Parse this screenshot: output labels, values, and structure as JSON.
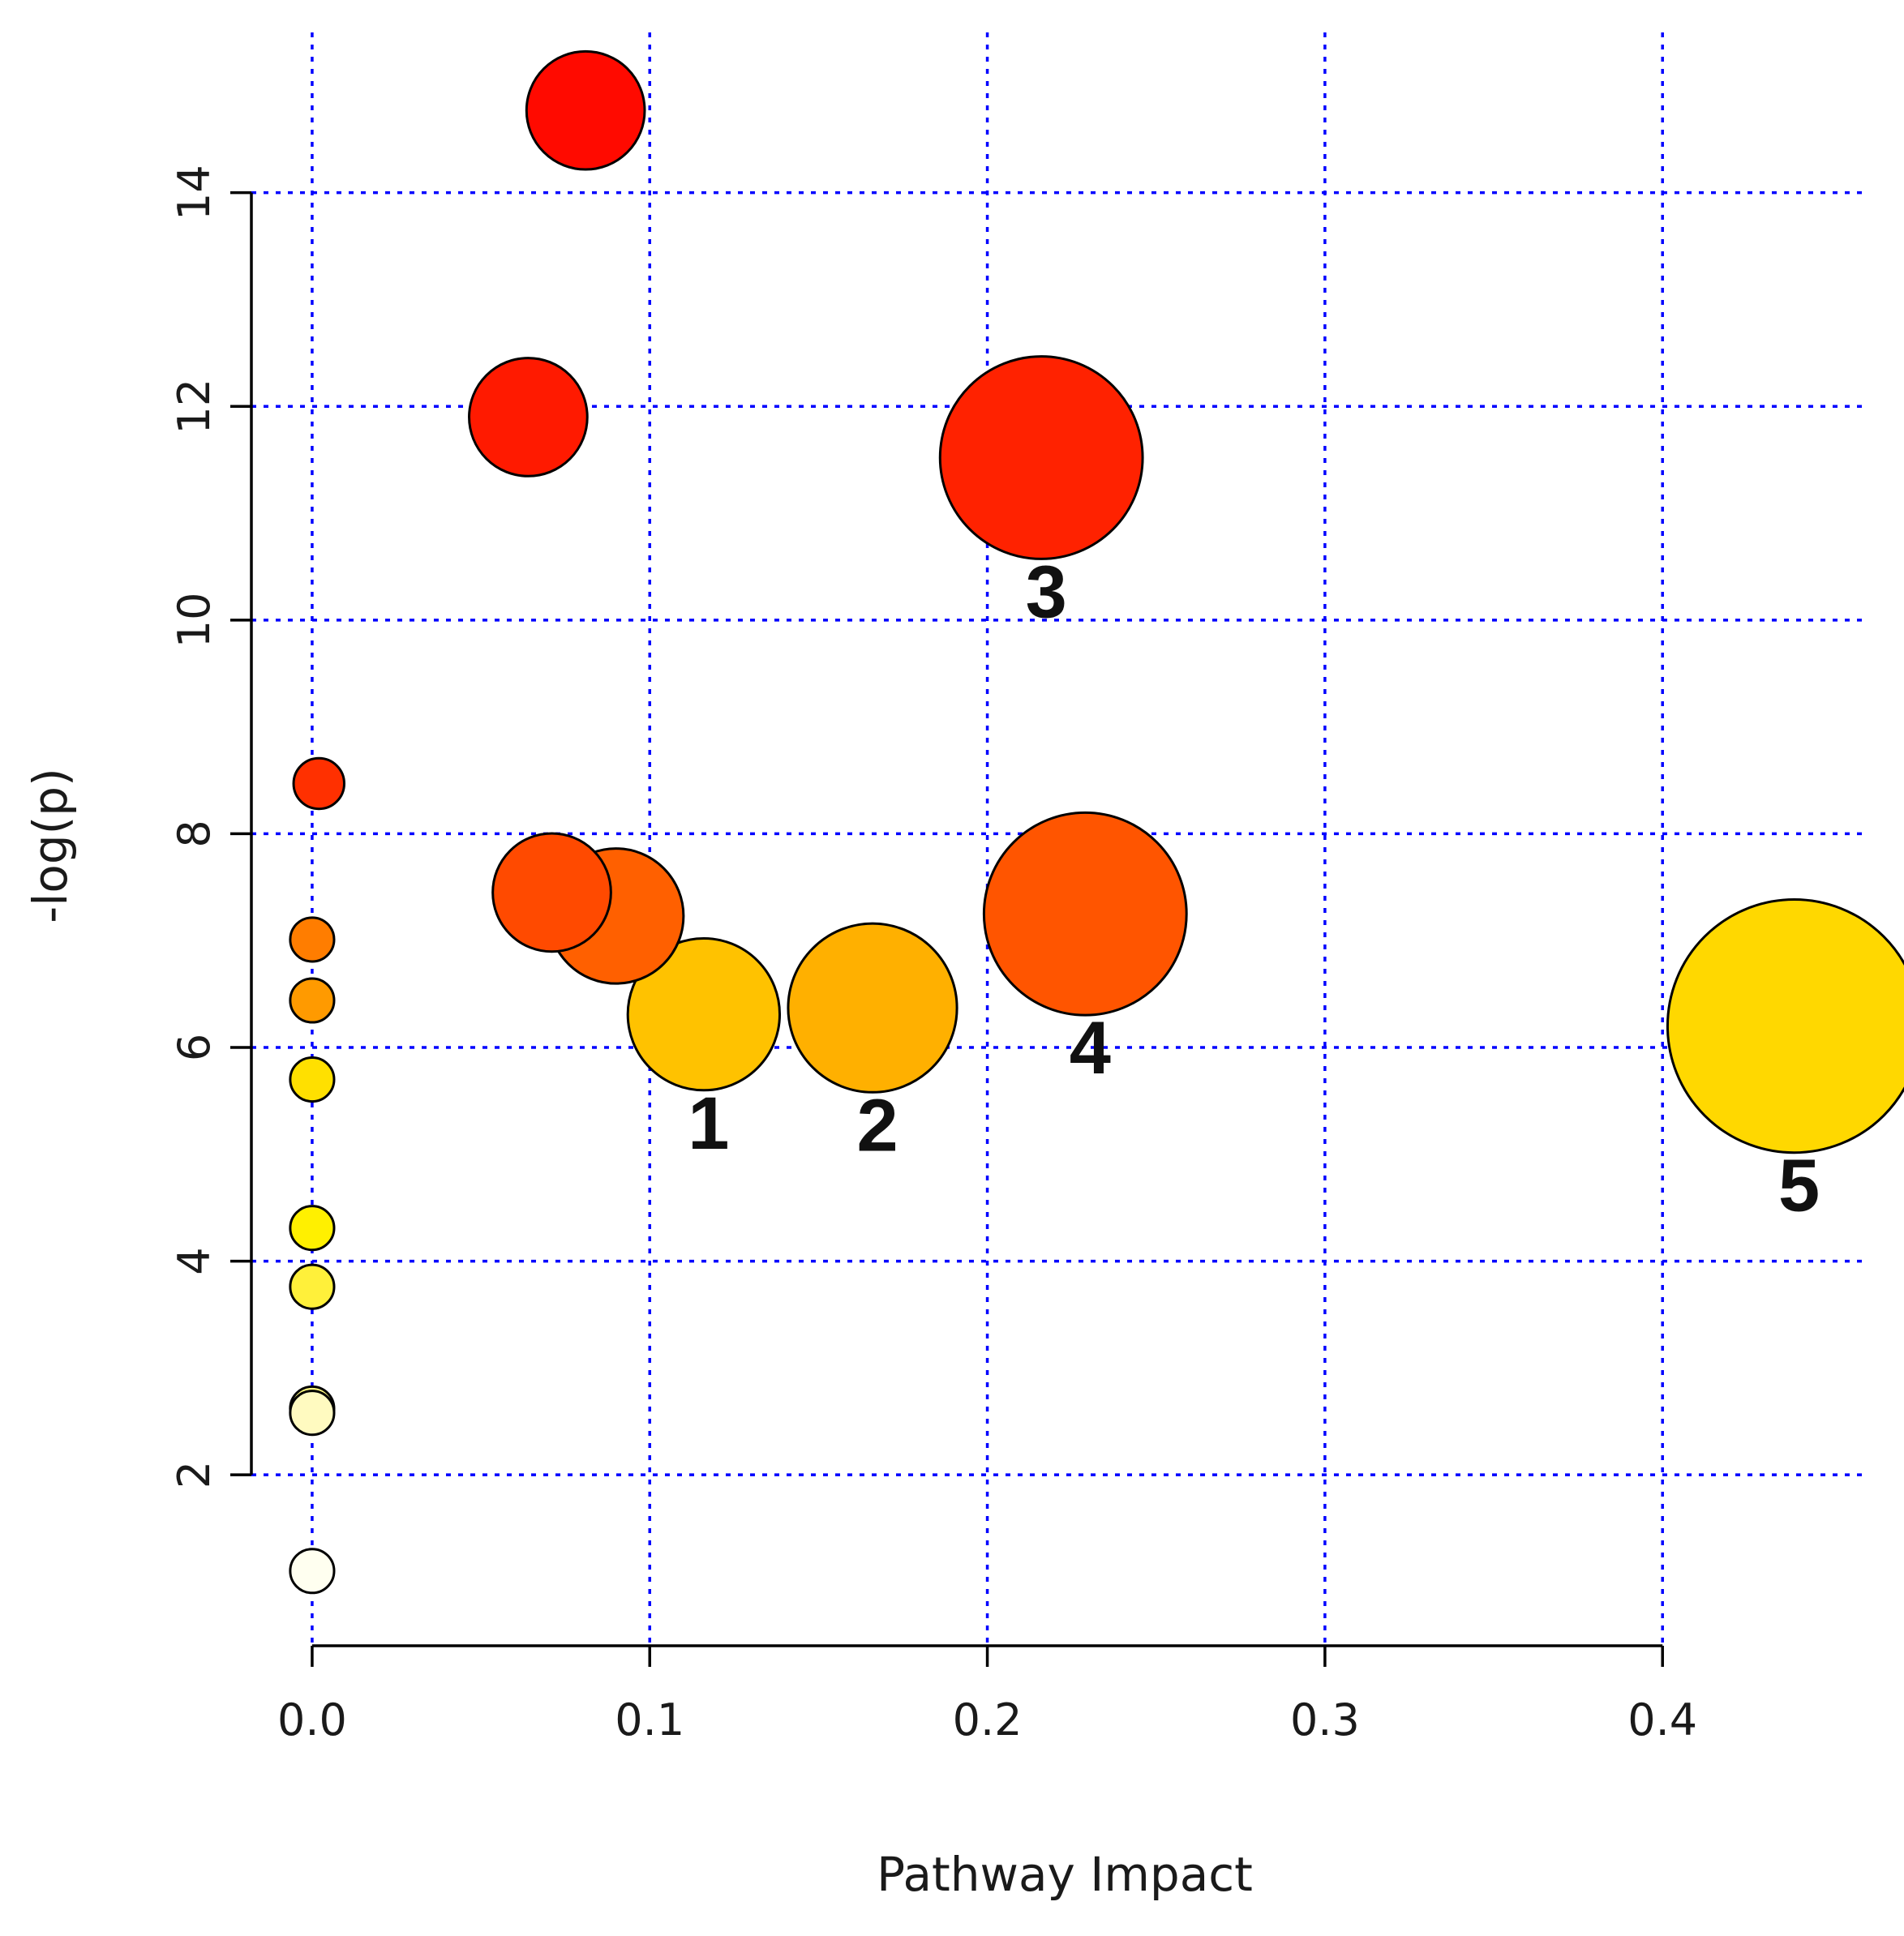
{
  "chart_data": {
    "type": "scatter",
    "xlabel": "Pathway Impact",
    "ylabel": "-log(p)",
    "xlim": [
      -0.018,
      0.46
    ],
    "ylim": [
      0.4,
      15.5
    ],
    "xticks": [
      0.0,
      0.1,
      0.2,
      0.3,
      0.4
    ],
    "xtick_labels": [
      "0.0",
      "0.1",
      "0.2",
      "0.3",
      "0.4"
    ],
    "yticks": [
      2,
      4,
      6,
      8,
      10,
      12,
      14
    ],
    "ytick_labels": [
      "2",
      "4",
      "6",
      "8",
      "10",
      "12",
      "14"
    ],
    "grid": true,
    "grid_color": "#0000ff",
    "points": [
      {
        "x": 0.081,
        "y": 14.77,
        "size": 0.035,
        "color": "#ff0a00",
        "label": ""
      },
      {
        "x": 0.064,
        "y": 11.9,
        "size": 0.035,
        "color": "#ff1a00",
        "label": ""
      },
      {
        "x": 0.216,
        "y": 11.52,
        "size": 0.06,
        "color": "#ff2200",
        "label": "3"
      },
      {
        "x": 0.002,
        "y": 8.47,
        "size": 0.015,
        "color": "#ff3000",
        "label": ""
      },
      {
        "x": 0.071,
        "y": 7.45,
        "size": 0.035,
        "color": "#ff4a00",
        "label": ""
      },
      {
        "x": 0.09,
        "y": 7.23,
        "size": 0.04,
        "color": "#ff6000",
        "label": ""
      },
      {
        "x": 0.229,
        "y": 7.25,
        "size": 0.06,
        "color": "#ff5500",
        "label": "4"
      },
      {
        "x": 0.0,
        "y": 7.01,
        "size": 0.013,
        "color": "#ff7d00",
        "label": ""
      },
      {
        "x": 0.0,
        "y": 6.44,
        "size": 0.013,
        "color": "#ff9a00",
        "label": ""
      },
      {
        "x": 0.116,
        "y": 6.31,
        "size": 0.045,
        "color": "#ffc200",
        "label": "1"
      },
      {
        "x": 0.166,
        "y": 6.37,
        "size": 0.05,
        "color": "#ffb000",
        "label": "2"
      },
      {
        "x": 0.439,
        "y": 6.2,
        "size": 0.075,
        "color": "#ffd800",
        "label": "5"
      },
      {
        "x": 0.0,
        "y": 5.7,
        "size": 0.013,
        "color": "#ffe000",
        "label": ""
      },
      {
        "x": 0.0,
        "y": 4.31,
        "size": 0.013,
        "color": "#fff000",
        "label": ""
      },
      {
        "x": 0.0,
        "y": 3.76,
        "size": 0.013,
        "color": "#fff03a",
        "label": ""
      },
      {
        "x": 0.0,
        "y": 2.62,
        "size": 0.013,
        "color": "#fffa80",
        "label": ""
      },
      {
        "x": 0.0,
        "y": 2.58,
        "size": 0.013,
        "color": "#fffac0",
        "label": ""
      },
      {
        "x": 0.0,
        "y": 1.1,
        "size": 0.013,
        "color": "#fffff0",
        "label": ""
      }
    ]
  }
}
